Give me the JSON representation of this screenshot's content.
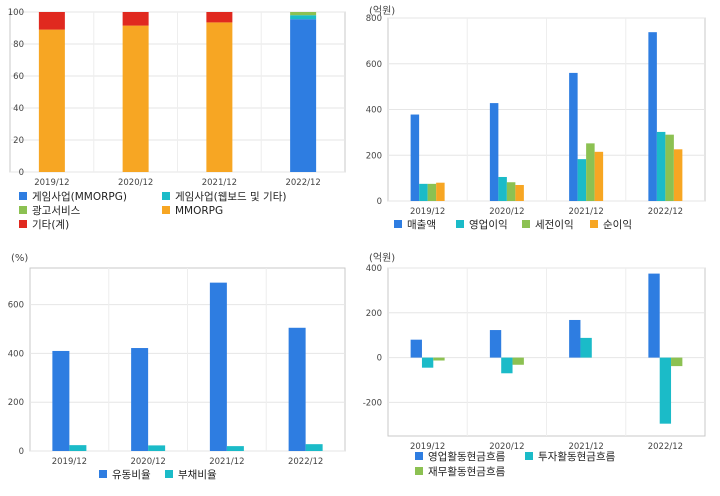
{
  "chart_data": [
    {
      "type": "bar",
      "stacked": true,
      "unit": "",
      "categories": [
        "2019/12",
        "2020/12",
        "2021/12",
        "2022/12"
      ],
      "ylim": [
        0,
        100
      ],
      "yticks": [
        0,
        20,
        40,
        60,
        80,
        100
      ],
      "grid": true,
      "legend_position": "bottom",
      "series": [
        {
          "name": "게임사업(MMORPG)",
          "color": "#2e7de1",
          "values": [
            0,
            0,
            0,
            95.5
          ]
        },
        {
          "name": "게임사업(웹보드 및 기타)",
          "color": "#1bbbc8",
          "values": [
            0,
            0,
            0,
            2.5
          ]
        },
        {
          "name": "광고서비스",
          "color": "#8cc152",
          "values": [
            0,
            0,
            0,
            2
          ]
        },
        {
          "name": "MMORPG",
          "color": "#f7a623",
          "values": [
            89,
            91.5,
            93.5,
            0
          ]
        },
        {
          "name": "기타(계)",
          "color": "#e0291f",
          "values": [
            11,
            8.5,
            6.5,
            0
          ]
        }
      ]
    },
    {
      "type": "bar",
      "unit": "(억원)",
      "categories": [
        "2019/12",
        "2020/12",
        "2021/12",
        "2022/12"
      ],
      "ylim": [
        0,
        800
      ],
      "yticks": [
        0,
        200,
        400,
        600,
        800
      ],
      "grid": true,
      "legend_position": "bottom",
      "series": [
        {
          "name": "매출액",
          "color": "#2e7de1",
          "values": [
            378,
            428,
            560,
            738
          ]
        },
        {
          "name": "영업이익",
          "color": "#1bbbc8",
          "values": [
            75,
            105,
            183,
            302
          ]
        },
        {
          "name": "세전이익",
          "color": "#8cc152",
          "values": [
            75,
            82,
            252,
            290
          ]
        },
        {
          "name": "순이익",
          "color": "#f7a623",
          "values": [
            80,
            70,
            215,
            226
          ]
        }
      ]
    },
    {
      "type": "bar",
      "unit": "(%)",
      "categories": [
        "2019/12",
        "2020/12",
        "2021/12",
        "2022/12"
      ],
      "ylim": [
        0,
        750
      ],
      "yticks": [
        0,
        200,
        400,
        600
      ],
      "grid": true,
      "legend_position": "bottom",
      "series": [
        {
          "name": "유동비율",
          "color": "#2e7de1",
          "values": [
            410,
            422,
            690,
            505
          ]
        },
        {
          "name": "부채비율",
          "color": "#1bbbc8",
          "values": [
            24,
            23,
            20,
            28
          ]
        }
      ]
    },
    {
      "type": "bar",
      "unit": "(억원)",
      "categories": [
        "2019/12",
        "2020/12",
        "2021/12",
        "2022/12"
      ],
      "ylim": [
        -350,
        400
      ],
      "yticks": [
        -200,
        0,
        200,
        400
      ],
      "grid": true,
      "legend_position": "bottom",
      "series": [
        {
          "name": "영업활동현금흐름",
          "color": "#2e7de1",
          "values": [
            80,
            123,
            168,
            375
          ]
        },
        {
          "name": "투자활동현금흐름",
          "color": "#1bbbc8",
          "values": [
            -45,
            -70,
            88,
            -295
          ]
        },
        {
          "name": "재무활동현금흐름",
          "color": "#8cc152",
          "values": [
            -13,
            -32,
            0,
            -38
          ]
        }
      ]
    }
  ]
}
